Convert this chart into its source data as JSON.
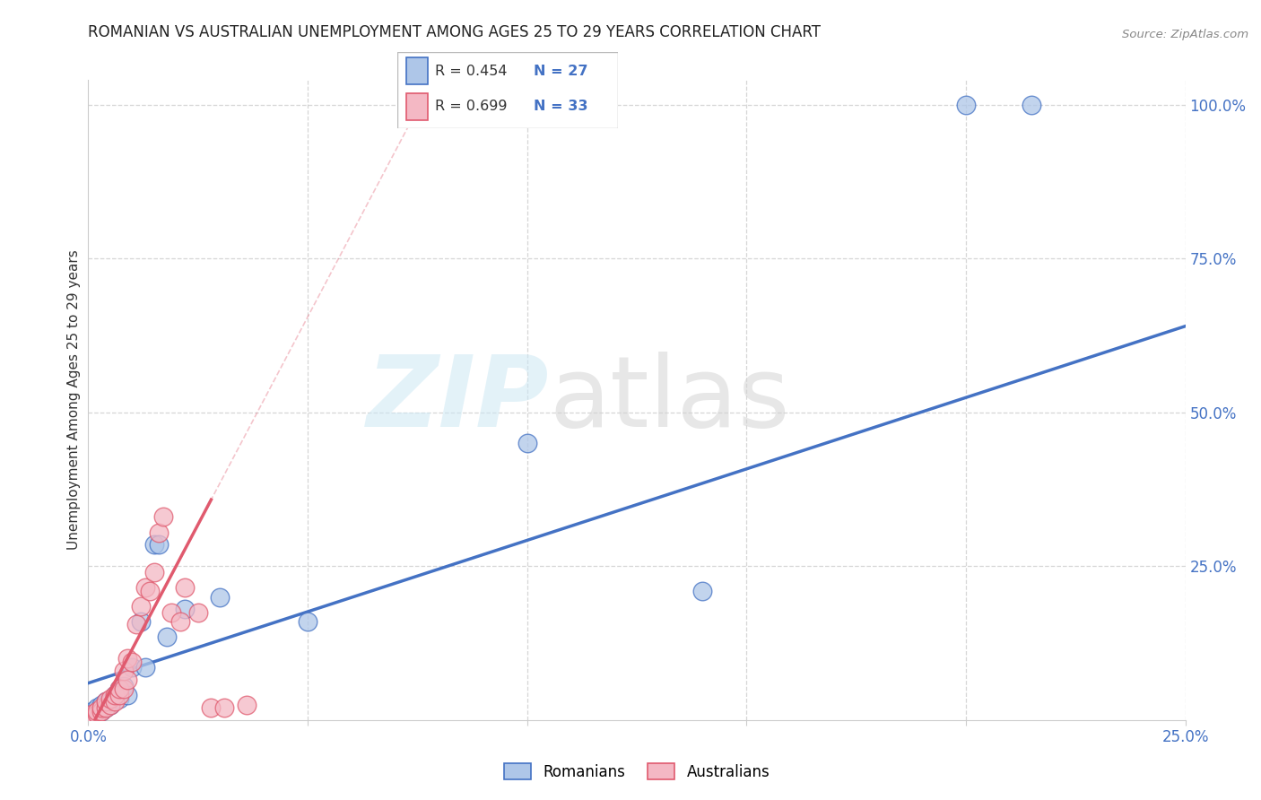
{
  "title": "ROMANIAN VS AUSTRALIAN UNEMPLOYMENT AMONG AGES 25 TO 29 YEARS CORRELATION CHART",
  "source": "Source: ZipAtlas.com",
  "ylabel_label": "Unemployment Among Ages 25 to 29 years",
  "R_blue": 0.454,
  "N_blue": 27,
  "R_pink": 0.699,
  "N_pink": 33,
  "blue_line_color": "#4472c4",
  "pink_line_color": "#e05a6e",
  "dot_blue_face": "#aec6e8",
  "dot_blue_edge": "#4472c4",
  "dot_pink_face": "#f4b8c4",
  "dot_pink_edge": "#e05a6e",
  "text_blue": "#4472c4",
  "text_dark": "#333333",
  "grid_color": "#cccccc",
  "watermark_zip_color": "#cce0f0",
  "watermark_atlas_color": "#d8d8d8",
  "blue_scatter_x": [
    0.001,
    0.002,
    0.002,
    0.003,
    0.003,
    0.004,
    0.004,
    0.005,
    0.005,
    0.006,
    0.007,
    0.007,
    0.008,
    0.009,
    0.01,
    0.012,
    0.013,
    0.015,
    0.016,
    0.018,
    0.022,
    0.03,
    0.05,
    0.1,
    0.14,
    0.2,
    0.215
  ],
  "blue_scatter_y": [
    0.015,
    0.01,
    0.02,
    0.015,
    0.025,
    0.02,
    0.03,
    0.025,
    0.03,
    0.04,
    0.05,
    0.035,
    0.055,
    0.04,
    0.085,
    0.16,
    0.085,
    0.285,
    0.285,
    0.135,
    0.18,
    0.2,
    0.16,
    0.45,
    0.21,
    1.0,
    1.0
  ],
  "pink_scatter_x": [
    0.001,
    0.001,
    0.002,
    0.002,
    0.003,
    0.003,
    0.004,
    0.004,
    0.005,
    0.005,
    0.006,
    0.006,
    0.007,
    0.007,
    0.008,
    0.008,
    0.009,
    0.009,
    0.01,
    0.011,
    0.012,
    0.013,
    0.014,
    0.015,
    0.016,
    0.017,
    0.019,
    0.021,
    0.022,
    0.025,
    0.028,
    0.031,
    0.036
  ],
  "pink_scatter_y": [
    0.005,
    0.01,
    0.01,
    0.015,
    0.015,
    0.02,
    0.02,
    0.03,
    0.025,
    0.035,
    0.03,
    0.04,
    0.04,
    0.05,
    0.05,
    0.08,
    0.065,
    0.1,
    0.095,
    0.155,
    0.185,
    0.215,
    0.21,
    0.24,
    0.305,
    0.33,
    0.175,
    0.16,
    0.215,
    0.175,
    0.02,
    0.02,
    0.025
  ],
  "xlim": [
    0.0,
    0.25
  ],
  "ylim": [
    0.0,
    1.04
  ],
  "xticks": [
    0.0,
    0.05,
    0.1,
    0.15,
    0.2,
    0.25
  ],
  "yticks": [
    0.0,
    0.25,
    0.5,
    0.75,
    1.0
  ],
  "blue_trend": [
    0.0,
    0.06,
    0.25,
    0.64
  ],
  "pink_slope": 13.5,
  "pink_intercept": -0.02,
  "pink_solid_xlim": [
    0.0,
    0.028
  ],
  "pink_dashed_xlim": [
    0.0,
    0.25
  ]
}
